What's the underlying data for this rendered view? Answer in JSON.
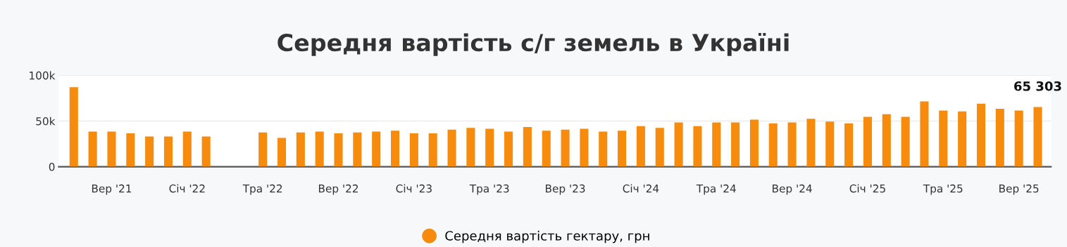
{
  "chart_data": {
    "type": "bar",
    "title": "Середня вартість с/г земель в Україні",
    "categories": [
      null,
      null,
      "Вер '21",
      null,
      null,
      null,
      "Січ '22",
      null,
      null,
      null,
      "Тра '22",
      null,
      null,
      null,
      "Вер '22",
      null,
      null,
      null,
      "Січ '23",
      null,
      null,
      null,
      "Тра '23",
      null,
      null,
      null,
      "Вер '23",
      null,
      null,
      null,
      "Січ '24",
      null,
      null,
      null,
      "Тра '24",
      null,
      null,
      null,
      "Вер '24",
      null,
      null,
      null,
      "Січ '25",
      null,
      null,
      null,
      "Тра '25",
      null,
      null,
      null,
      "Вер '25",
      null
    ],
    "series": [
      {
        "name": "Середня вартість гектару, грн",
        "color": "#f68b0e",
        "values": [
          87000,
          38500,
          38500,
          36500,
          33000,
          33000,
          38500,
          33000,
          null,
          null,
          37500,
          31500,
          37500,
          38500,
          36500,
          37500,
          38500,
          39500,
          36500,
          36500,
          40500,
          42500,
          41500,
          38500,
          43500,
          39500,
          40500,
          41500,
          38500,
          39500,
          44500,
          42500,
          48500,
          44500,
          48500,
          48500,
          51500,
          47500,
          48500,
          52500,
          49500,
          47500,
          54500,
          57500,
          54500,
          71500,
          61500,
          60500,
          69000,
          63500,
          61500,
          65303
        ],
        "value_labels": [
          null,
          null,
          null,
          null,
          null,
          null,
          null,
          null,
          null,
          null,
          null,
          null,
          null,
          null,
          null,
          null,
          null,
          null,
          null,
          null,
          null,
          null,
          null,
          null,
          null,
          null,
          null,
          null,
          null,
          null,
          null,
          null,
          null,
          null,
          null,
          null,
          null,
          null,
          null,
          null,
          null,
          null,
          null,
          null,
          null,
          null,
          null,
          null,
          null,
          null,
          null,
          "65 303"
        ]
      }
    ],
    "ylim": [
      0,
      100000
    ],
    "yticks": [
      0,
      {
        "value": 50000,
        "label": "50k"
      },
      {
        "value": 100000,
        "label": "100k"
      }
    ],
    "grid": "y",
    "legend": "bottom",
    "marker": "circle"
  }
}
